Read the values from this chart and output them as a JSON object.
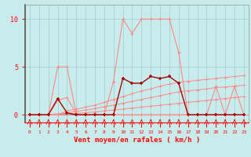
{
  "x": [
    0,
    1,
    2,
    3,
    4,
    5,
    6,
    7,
    8,
    9,
    10,
    11,
    12,
    13,
    14,
    15,
    16,
    17,
    18,
    19,
    20,
    21,
    22,
    23
  ],
  "line_tall_pink": [
    0,
    0,
    0,
    5,
    5,
    0,
    0,
    0,
    0,
    3.5,
    10,
    8.5,
    10,
    10,
    10,
    10,
    6.5,
    0,
    0,
    0,
    3,
    0,
    3,
    0
  ],
  "line_dark_red": [
    0,
    0,
    0,
    1.7,
    0.2,
    0,
    0,
    0,
    0,
    0,
    3.8,
    3.3,
    3.3,
    4,
    3.8,
    4,
    3.3,
    0,
    0,
    0,
    0,
    0,
    0,
    0
  ],
  "line_slope1": [
    0,
    0,
    0,
    0,
    0.4,
    0.6,
    0.8,
    1.0,
    1.3,
    1.6,
    1.9,
    2.2,
    2.5,
    2.7,
    3.0,
    3.2,
    3.4,
    3.5,
    3.6,
    3.7,
    3.8,
    3.9,
    4.0,
    4.1
  ],
  "line_slope2": [
    0,
    0,
    0,
    0,
    0.2,
    0.35,
    0.5,
    0.65,
    0.85,
    1.0,
    1.2,
    1.4,
    1.6,
    1.8,
    2.0,
    2.2,
    2.4,
    2.5,
    2.6,
    2.7,
    2.85,
    2.9,
    3.0,
    3.1
  ],
  "line_slope3": [
    0,
    0,
    0,
    0,
    0.08,
    0.15,
    0.22,
    0.3,
    0.4,
    0.5,
    0.6,
    0.7,
    0.8,
    0.9,
    1.0,
    1.1,
    1.2,
    1.3,
    1.4,
    1.5,
    1.6,
    1.7,
    1.8,
    1.9
  ],
  "line_bump1": [
    0,
    0,
    0,
    1.5,
    1.8,
    0.1,
    0,
    0,
    0,
    0,
    0,
    0,
    0,
    0,
    0,
    0,
    0,
    0,
    0,
    0,
    0,
    0,
    0,
    0
  ],
  "line_bump2": [
    0,
    0,
    0,
    0.1,
    0.15,
    0,
    0,
    0,
    0,
    0,
    0,
    0,
    0,
    0,
    0,
    0,
    0,
    0,
    0,
    0,
    0,
    0,
    0,
    0
  ],
  "bg_color": "#c8ecec",
  "grid_color": "#a0cccc",
  "light_pink": "#ff8888",
  "dark_red": "#aa0000",
  "medium_pink": "#ff9999",
  "xlabel": "Vent moyen/en rafales ( km/h )",
  "yticks": [
    0,
    5,
    10
  ],
  "yticklabels": [
    "0",
    "5",
    "10"
  ],
  "xlim": [
    -0.5,
    23.5
  ],
  "ylim": [
    -0.8,
    11.5
  ]
}
